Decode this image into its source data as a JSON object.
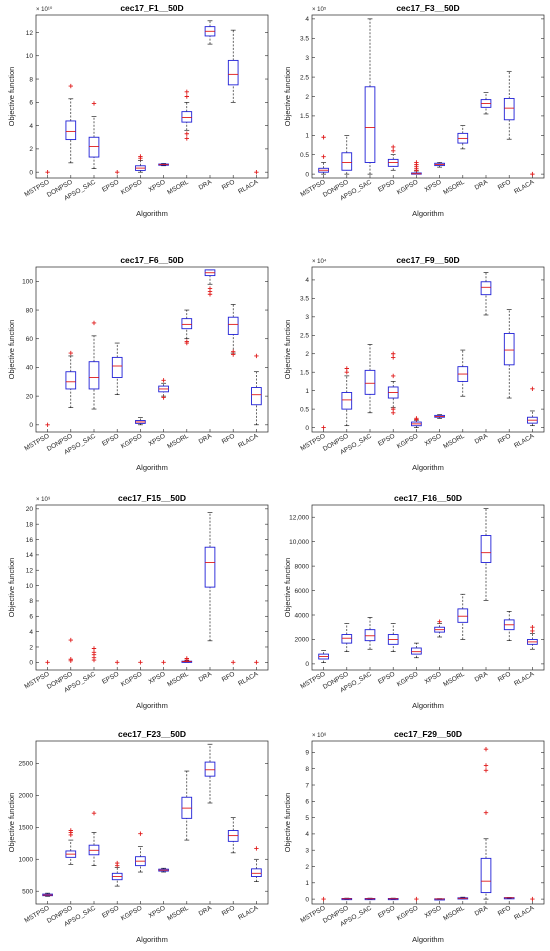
{
  "chart_data": [
    {
      "type": "box",
      "title": "cec17_F1__50D",
      "xlabel": "Algorithm",
      "ylabel": "Objective function",
      "multiplier": "× 10¹⁰",
      "ylim": [
        -0.5,
        13.5
      ],
      "yticks": [
        0,
        2,
        4,
        6,
        8,
        10,
        12
      ],
      "categories": [
        "MSTPSO",
        "DONPSO",
        "APSO_SAC",
        "EPSO",
        "KGPSO",
        "XPSO",
        "MSORL",
        "DRA",
        "RFO",
        "RLACA"
      ],
      "boxes": [
        {
          "wlo": 0,
          "q1": 0,
          "med": 0,
          "q3": 0,
          "whi": 0,
          "outliers": [
            0
          ]
        },
        {
          "wlo": 0.8,
          "q1": 2.8,
          "med": 3.5,
          "q3": 4.4,
          "whi": 6.3,
          "outliers": [
            7.4
          ]
        },
        {
          "wlo": 0.3,
          "q1": 1.3,
          "med": 2.2,
          "q3": 3.0,
          "whi": 4.8,
          "outliers": [
            5.9
          ]
        },
        {
          "wlo": 0,
          "q1": 0,
          "med": 0,
          "q3": 0,
          "whi": 0,
          "outliers": [
            0
          ]
        },
        {
          "wlo": 0,
          "q1": 0.15,
          "med": 0.35,
          "q3": 0.55,
          "whi": 1.0,
          "outliers": [
            1.2,
            1.35
          ]
        },
        {
          "wlo": 0.55,
          "q1": 0.6,
          "med": 0.65,
          "q3": 0.7,
          "whi": 0.75,
          "outliers": []
        },
        {
          "wlo": 3.6,
          "q1": 4.3,
          "med": 4.7,
          "q3": 5.2,
          "whi": 6.0,
          "outliers": [
            2.9,
            3.3,
            6.5,
            6.9
          ]
        },
        {
          "wlo": 11.0,
          "q1": 11.7,
          "med": 12.1,
          "q3": 12.5,
          "whi": 13.0,
          "outliers": []
        },
        {
          "wlo": 6.0,
          "q1": 7.5,
          "med": 8.4,
          "q3": 9.6,
          "whi": 12.2,
          "outliers": []
        },
        {
          "wlo": 0,
          "q1": 0,
          "med": 0,
          "q3": 0,
          "whi": 0,
          "outliers": [
            0
          ]
        }
      ]
    },
    {
      "type": "box",
      "title": "cec17_F3__50D",
      "xlabel": "Algorithm",
      "ylabel": "Objective function",
      "multiplier": "× 10⁵",
      "ylim": [
        -0.1,
        4.1
      ],
      "yticks": [
        0,
        0.5,
        1,
        1.5,
        2,
        2.5,
        3,
        3.5,
        4
      ],
      "categories": [
        "MSTPSO",
        "DONPSO",
        "APSO_SAC",
        "EPSO",
        "KGPSO",
        "XPSO",
        "MSORL",
        "DRA",
        "RFO",
        "RLACA"
      ],
      "boxes": [
        {
          "wlo": 0,
          "q1": 0.05,
          "med": 0.1,
          "q3": 0.15,
          "whi": 0.3,
          "outliers": [
            0.45,
            0.95
          ]
        },
        {
          "wlo": 0,
          "q1": 0.1,
          "med": 0.3,
          "q3": 0.55,
          "whi": 1.0,
          "outliers": []
        },
        {
          "wlo": 0,
          "q1": 0.3,
          "med": 1.2,
          "q3": 2.25,
          "whi": 4.0,
          "outliers": []
        },
        {
          "wlo": 0.1,
          "q1": 0.2,
          "med": 0.3,
          "q3": 0.38,
          "whi": 0.5,
          "outliers": [
            0.6,
            0.7
          ]
        },
        {
          "wlo": 0,
          "q1": 0.0,
          "med": 0.01,
          "q3": 0.03,
          "whi": 0.08,
          "outliers": [
            0.1,
            0.15,
            0.2,
            0.25,
            0.3
          ]
        },
        {
          "wlo": 0.18,
          "q1": 0.22,
          "med": 0.25,
          "q3": 0.28,
          "whi": 0.3,
          "outliers": []
        },
        {
          "wlo": 0.65,
          "q1": 0.8,
          "med": 0.92,
          "q3": 1.05,
          "whi": 1.25,
          "outliers": []
        },
        {
          "wlo": 1.55,
          "q1": 1.72,
          "med": 1.82,
          "q3": 1.92,
          "whi": 2.1,
          "outliers": []
        },
        {
          "wlo": 0.9,
          "q1": 1.4,
          "med": 1.7,
          "q3": 1.95,
          "whi": 2.65,
          "outliers": []
        },
        {
          "wlo": 0,
          "q1": 0,
          "med": 0,
          "q3": 0,
          "whi": 0,
          "outliers": [
            0
          ]
        }
      ]
    },
    {
      "type": "box",
      "title": "cec17_F6__50D",
      "xlabel": "Algorithm",
      "ylabel": "Objective function",
      "multiplier": "",
      "ylim": [
        -5,
        110
      ],
      "yticks": [
        0,
        20,
        40,
        60,
        80,
        100
      ],
      "categories": [
        "MSTPSO",
        "DONPSO",
        "APSO_SAC",
        "EPSO",
        "KGPSO",
        "XPSO",
        "MSORL",
        "DRA",
        "RFO",
        "RLACA"
      ],
      "boxes": [
        {
          "wlo": 0,
          "q1": 0,
          "med": 0,
          "q3": 0,
          "whi": 0,
          "outliers": [
            0
          ]
        },
        {
          "wlo": 12,
          "q1": 25,
          "med": 30,
          "q3": 37,
          "whi": 48,
          "outliers": [
            50
          ]
        },
        {
          "wlo": 11,
          "q1": 25,
          "med": 33,
          "q3": 44,
          "whi": 62,
          "outliers": [
            71
          ]
        },
        {
          "wlo": 21,
          "q1": 33,
          "med": 41,
          "q3": 47,
          "whi": 57,
          "outliers": []
        },
        {
          "wlo": 0,
          "q1": 1,
          "med": 2,
          "q3": 3,
          "whi": 5,
          "outliers": []
        },
        {
          "wlo": 20,
          "q1": 23,
          "med": 25,
          "q3": 27,
          "whi": 29,
          "outliers": [
            19,
            31
          ]
        },
        {
          "wlo": 60,
          "q1": 67,
          "med": 70,
          "q3": 74,
          "whi": 80,
          "outliers": [
            57,
            58
          ]
        },
        {
          "wlo": 98,
          "q1": 104,
          "med": 106,
          "q3": 108,
          "whi": 108,
          "outliers": [
            91,
            93,
            95
          ]
        },
        {
          "wlo": 50,
          "q1": 63,
          "med": 70,
          "q3": 75,
          "whi": 84,
          "outliers": [
            49,
            51
          ]
        },
        {
          "wlo": 0,
          "q1": 14,
          "med": 21,
          "q3": 26,
          "whi": 37,
          "outliers": [
            48
          ]
        }
      ]
    },
    {
      "type": "box",
      "title": "cec17_F9__50D",
      "xlabel": "Algorithm",
      "ylabel": "Objective function",
      "multiplier": "× 10⁴",
      "ylim": [
        -0.12,
        4.35
      ],
      "yticks": [
        0,
        0.5,
        1,
        1.5,
        2,
        2.5,
        3,
        3.5,
        4
      ],
      "categories": [
        "MSTPSO",
        "DONPSO",
        "APSO_SAC",
        "EPSO",
        "KGPSO",
        "XPSO",
        "MSORL",
        "DRA",
        "RFO",
        "RLACA"
      ],
      "boxes": [
        {
          "wlo": 0,
          "q1": 0,
          "med": 0,
          "q3": 0,
          "whi": 0,
          "outliers": [
            0
          ]
        },
        {
          "wlo": 0.05,
          "q1": 0.5,
          "med": 0.75,
          "q3": 0.95,
          "whi": 1.4,
          "outliers": [
            1.5,
            1.6
          ]
        },
        {
          "wlo": 0.4,
          "q1": 0.9,
          "med": 1.2,
          "q3": 1.55,
          "whi": 2.25,
          "outliers": []
        },
        {
          "wlo": 0.55,
          "q1": 0.8,
          "med": 0.95,
          "q3": 1.1,
          "whi": 1.25,
          "outliers": [
            0.4,
            0.5,
            1.4,
            1.9,
            2.0
          ]
        },
        {
          "wlo": 0,
          "q1": 0.05,
          "med": 0.1,
          "q3": 0.15,
          "whi": 0.2,
          "outliers": [
            0.22,
            0.25
          ]
        },
        {
          "wlo": 0.25,
          "q1": 0.28,
          "med": 0.3,
          "q3": 0.33,
          "whi": 0.35,
          "outliers": []
        },
        {
          "wlo": 0.85,
          "q1": 1.25,
          "med": 1.45,
          "q3": 1.65,
          "whi": 2.1,
          "outliers": []
        },
        {
          "wlo": 3.05,
          "q1": 3.6,
          "med": 3.8,
          "q3": 3.95,
          "whi": 4.2,
          "outliers": []
        },
        {
          "wlo": 0.8,
          "q1": 1.7,
          "med": 2.1,
          "q3": 2.55,
          "whi": 3.2,
          "outliers": []
        },
        {
          "wlo": 0.05,
          "q1": 0.12,
          "med": 0.2,
          "q3": 0.28,
          "whi": 0.45,
          "outliers": [
            1.05
          ]
        }
      ]
    },
    {
      "type": "box",
      "title": "cec17_F15__50D",
      "xlabel": "Algorithm",
      "ylabel": "Objective function",
      "multiplier": "× 10⁹",
      "ylim": [
        -1,
        20.5
      ],
      "yticks": [
        0,
        2,
        4,
        6,
        8,
        10,
        12,
        14,
        16,
        18,
        20
      ],
      "categories": [
        "MSTPSO",
        "DONPSO",
        "APSO_SAC",
        "EPSO",
        "KGPSO",
        "XPSO",
        "MSORL",
        "DRA",
        "RFO",
        "RLACA"
      ],
      "boxes": [
        {
          "wlo": 0,
          "q1": 0,
          "med": 0,
          "q3": 0,
          "whi": 0,
          "outliers": [
            0
          ]
        },
        {
          "wlo": 0,
          "q1": 0,
          "med": 0,
          "q3": 0,
          "whi": 0,
          "outliers": [
            0.2,
            0.4,
            2.9
          ]
        },
        {
          "wlo": 0,
          "q1": 0,
          "med": 0,
          "q3": 0,
          "whi": 0,
          "outliers": [
            0.3,
            0.6,
            1.0,
            1.3,
            1.8
          ]
        },
        {
          "wlo": 0,
          "q1": 0,
          "med": 0,
          "q3": 0,
          "whi": 0,
          "outliers": [
            0
          ]
        },
        {
          "wlo": 0,
          "q1": 0,
          "med": 0,
          "q3": 0,
          "whi": 0,
          "outliers": [
            0
          ]
        },
        {
          "wlo": 0,
          "q1": 0,
          "med": 0,
          "q3": 0,
          "whi": 0,
          "outliers": [
            0
          ]
        },
        {
          "wlo": 0,
          "q1": 0.05,
          "med": 0.1,
          "q3": 0.15,
          "whi": 0.2,
          "outliers": [
            0.3,
            0.5
          ]
        },
        {
          "wlo": 2.8,
          "q1": 9.8,
          "med": 13,
          "q3": 15,
          "whi": 19.5,
          "outliers": []
        },
        {
          "wlo": 0,
          "q1": 0,
          "med": 0,
          "q3": 0,
          "whi": 0,
          "outliers": [
            0
          ]
        },
        {
          "wlo": 0,
          "q1": 0,
          "med": 0,
          "q3": 0,
          "whi": 0,
          "outliers": [
            0
          ]
        }
      ]
    },
    {
      "type": "box",
      "title": "cec17_F16__50D",
      "xlabel": "Algorithm",
      "ylabel": "Objective function",
      "multiplier": "",
      "ylim": [
        -500,
        13000
      ],
      "yticks": [
        0,
        2000,
        4000,
        6000,
        8000,
        10000,
        12000
      ],
      "yticklabels": [
        "0",
        "2000",
        "4000",
        "6000",
        "8000",
        "10,000",
        "12,000"
      ],
      "categories": [
        "MSTPSO",
        "DONPSO",
        "APSO_SAC",
        "EPSO",
        "KGPSO",
        "XPSO",
        "MSORL",
        "DRA",
        "RFO",
        "RLACA"
      ],
      "boxes": [
        {
          "wlo": 100,
          "q1": 400,
          "med": 600,
          "q3": 800,
          "whi": 1100,
          "outliers": []
        },
        {
          "wlo": 1000,
          "q1": 1700,
          "med": 2100,
          "q3": 2400,
          "whi": 3300,
          "outliers": []
        },
        {
          "wlo": 1200,
          "q1": 1900,
          "med": 2300,
          "q3": 2800,
          "whi": 3800,
          "outliers": []
        },
        {
          "wlo": 1000,
          "q1": 1600,
          "med": 2000,
          "q3": 2400,
          "whi": 3300,
          "outliers": []
        },
        {
          "wlo": 500,
          "q1": 800,
          "med": 1000,
          "q3": 1300,
          "whi": 1700,
          "outliers": []
        },
        {
          "wlo": 2200,
          "q1": 2600,
          "med": 2800,
          "q3": 3000,
          "whi": 3300,
          "outliers": [
            3450
          ]
        },
        {
          "wlo": 2000,
          "q1": 3400,
          "med": 3900,
          "q3": 4500,
          "whi": 5700,
          "outliers": []
        },
        {
          "wlo": 5200,
          "q1": 8300,
          "med": 9100,
          "q3": 10500,
          "whi": 12700,
          "outliers": []
        },
        {
          "wlo": 1900,
          "q1": 2800,
          "med": 3200,
          "q3": 3600,
          "whi": 4300,
          "outliers": []
        },
        {
          "wlo": 1200,
          "q1": 1600,
          "med": 1800,
          "q3": 2000,
          "whi": 2500,
          "outliers": [
            2700,
            3000
          ]
        }
      ]
    },
    {
      "type": "box",
      "title": "cec17_F23__50D",
      "xlabel": "Algorithm",
      "ylabel": "Objective function",
      "multiplier": "",
      "ylim": [
        300,
        2850
      ],
      "yticks": [
        500,
        1000,
        1500,
        2000,
        2500
      ],
      "categories": [
        "MSTPSO",
        "DONPSO",
        "APSO_SAC",
        "EPSO",
        "KGPSO",
        "XPSO",
        "MSORL",
        "DRA",
        "RFO",
        "RLACA"
      ],
      "boxes": [
        {
          "wlo": 420,
          "q1": 430,
          "med": 440,
          "q3": 455,
          "whi": 470,
          "outliers": []
        },
        {
          "wlo": 920,
          "q1": 1030,
          "med": 1080,
          "q3": 1130,
          "whi": 1300,
          "outliers": [
            1380,
            1420,
            1450
          ]
        },
        {
          "wlo": 900,
          "q1": 1070,
          "med": 1140,
          "q3": 1220,
          "whi": 1420,
          "outliers": [
            1720
          ]
        },
        {
          "wlo": 580,
          "q1": 680,
          "med": 730,
          "q3": 780,
          "whi": 870,
          "outliers": [
            900,
            940
          ]
        },
        {
          "wlo": 800,
          "q1": 900,
          "med": 970,
          "q3": 1040,
          "whi": 1200,
          "outliers": [
            1400
          ]
        },
        {
          "wlo": 800,
          "q1": 815,
          "med": 830,
          "q3": 845,
          "whi": 860,
          "outliers": []
        },
        {
          "wlo": 1300,
          "q1": 1640,
          "med": 1800,
          "q3": 1970,
          "whi": 2380,
          "outliers": []
        },
        {
          "wlo": 1880,
          "q1": 2300,
          "med": 2400,
          "q3": 2520,
          "whi": 2800,
          "outliers": []
        },
        {
          "wlo": 1100,
          "q1": 1280,
          "med": 1370,
          "q3": 1450,
          "whi": 1650,
          "outliers": []
        },
        {
          "wlo": 650,
          "q1": 730,
          "med": 780,
          "q3": 850,
          "whi": 1000,
          "outliers": [
            1170
          ]
        }
      ]
    },
    {
      "type": "box",
      "title": "cec17_F29__50D",
      "xlabel": "Algorithm",
      "ylabel": "Objective function",
      "multiplier": "× 10⁸",
      "ylim": [
        -0.3,
        9.7
      ],
      "yticks": [
        0,
        1,
        2,
        3,
        4,
        5,
        6,
        7,
        8,
        9
      ],
      "categories": [
        "MSTPSO",
        "DONPSO",
        "APSO_SAC",
        "EPSO",
        "KGPSO",
        "XPSO",
        "MSORL",
        "DRA",
        "RFO",
        "RLACA"
      ],
      "boxes": [
        {
          "wlo": 0,
          "q1": 0,
          "med": 0,
          "q3": 0,
          "whi": 0,
          "outliers": [
            0
          ]
        },
        {
          "wlo": 0,
          "q1": 0,
          "med": 0.02,
          "q3": 0.04,
          "whi": 0.06,
          "outliers": []
        },
        {
          "wlo": 0,
          "q1": 0,
          "med": 0.02,
          "q3": 0.04,
          "whi": 0.06,
          "outliers": []
        },
        {
          "wlo": 0,
          "q1": 0,
          "med": 0.02,
          "q3": 0.04,
          "whi": 0.06,
          "outliers": []
        },
        {
          "wlo": 0,
          "q1": 0,
          "med": 0,
          "q3": 0,
          "whi": 0,
          "outliers": [
            0
          ]
        },
        {
          "wlo": 0,
          "q1": 0,
          "med": 0.01,
          "q3": 0.02,
          "whi": 0.03,
          "outliers": []
        },
        {
          "wlo": 0,
          "q1": 0.03,
          "med": 0.05,
          "q3": 0.08,
          "whi": 0.12,
          "outliers": []
        },
        {
          "wlo": 0,
          "q1": 0.4,
          "med": 1.1,
          "q3": 2.5,
          "whi": 3.7,
          "outliers": [
            5.3,
            7.9,
            8.2,
            9.2
          ]
        },
        {
          "wlo": 0.05,
          "q1": 0.07,
          "med": 0.08,
          "q3": 0.09,
          "whi": 0.1,
          "outliers": []
        },
        {
          "wlo": 0,
          "q1": 0,
          "med": 0,
          "q3": 0,
          "whi": 0,
          "outliers": [
            0
          ]
        }
      ]
    }
  ]
}
